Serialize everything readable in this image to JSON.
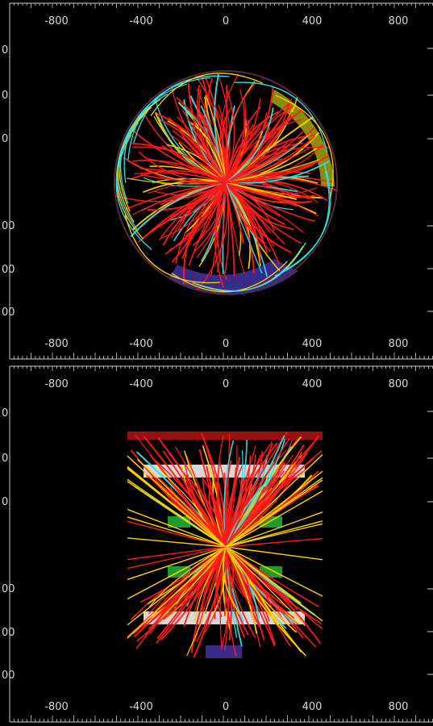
{
  "x_tick_labels": [
    "-800",
    "-400",
    "0",
    "400",
    "800"
  ],
  "left_partial_labels": [
    "0",
    "0",
    "0",
    "00",
    "00",
    "00"
  ],
  "panels": [
    {
      "id": "top",
      "view": "transverse"
    },
    {
      "id": "bottom",
      "view": "longitudinal"
    }
  ],
  "colors": {
    "background": "#000000",
    "track_primary": "#ff1a1a",
    "track_secondary": "#ffd400",
    "track_tertiary": "#33e0e0",
    "detector_fill": "#3a2a8a",
    "detector_green": "#1e9b2a",
    "detector_white": "#d8d8d8",
    "axis": "#cfcfcf"
  }
}
